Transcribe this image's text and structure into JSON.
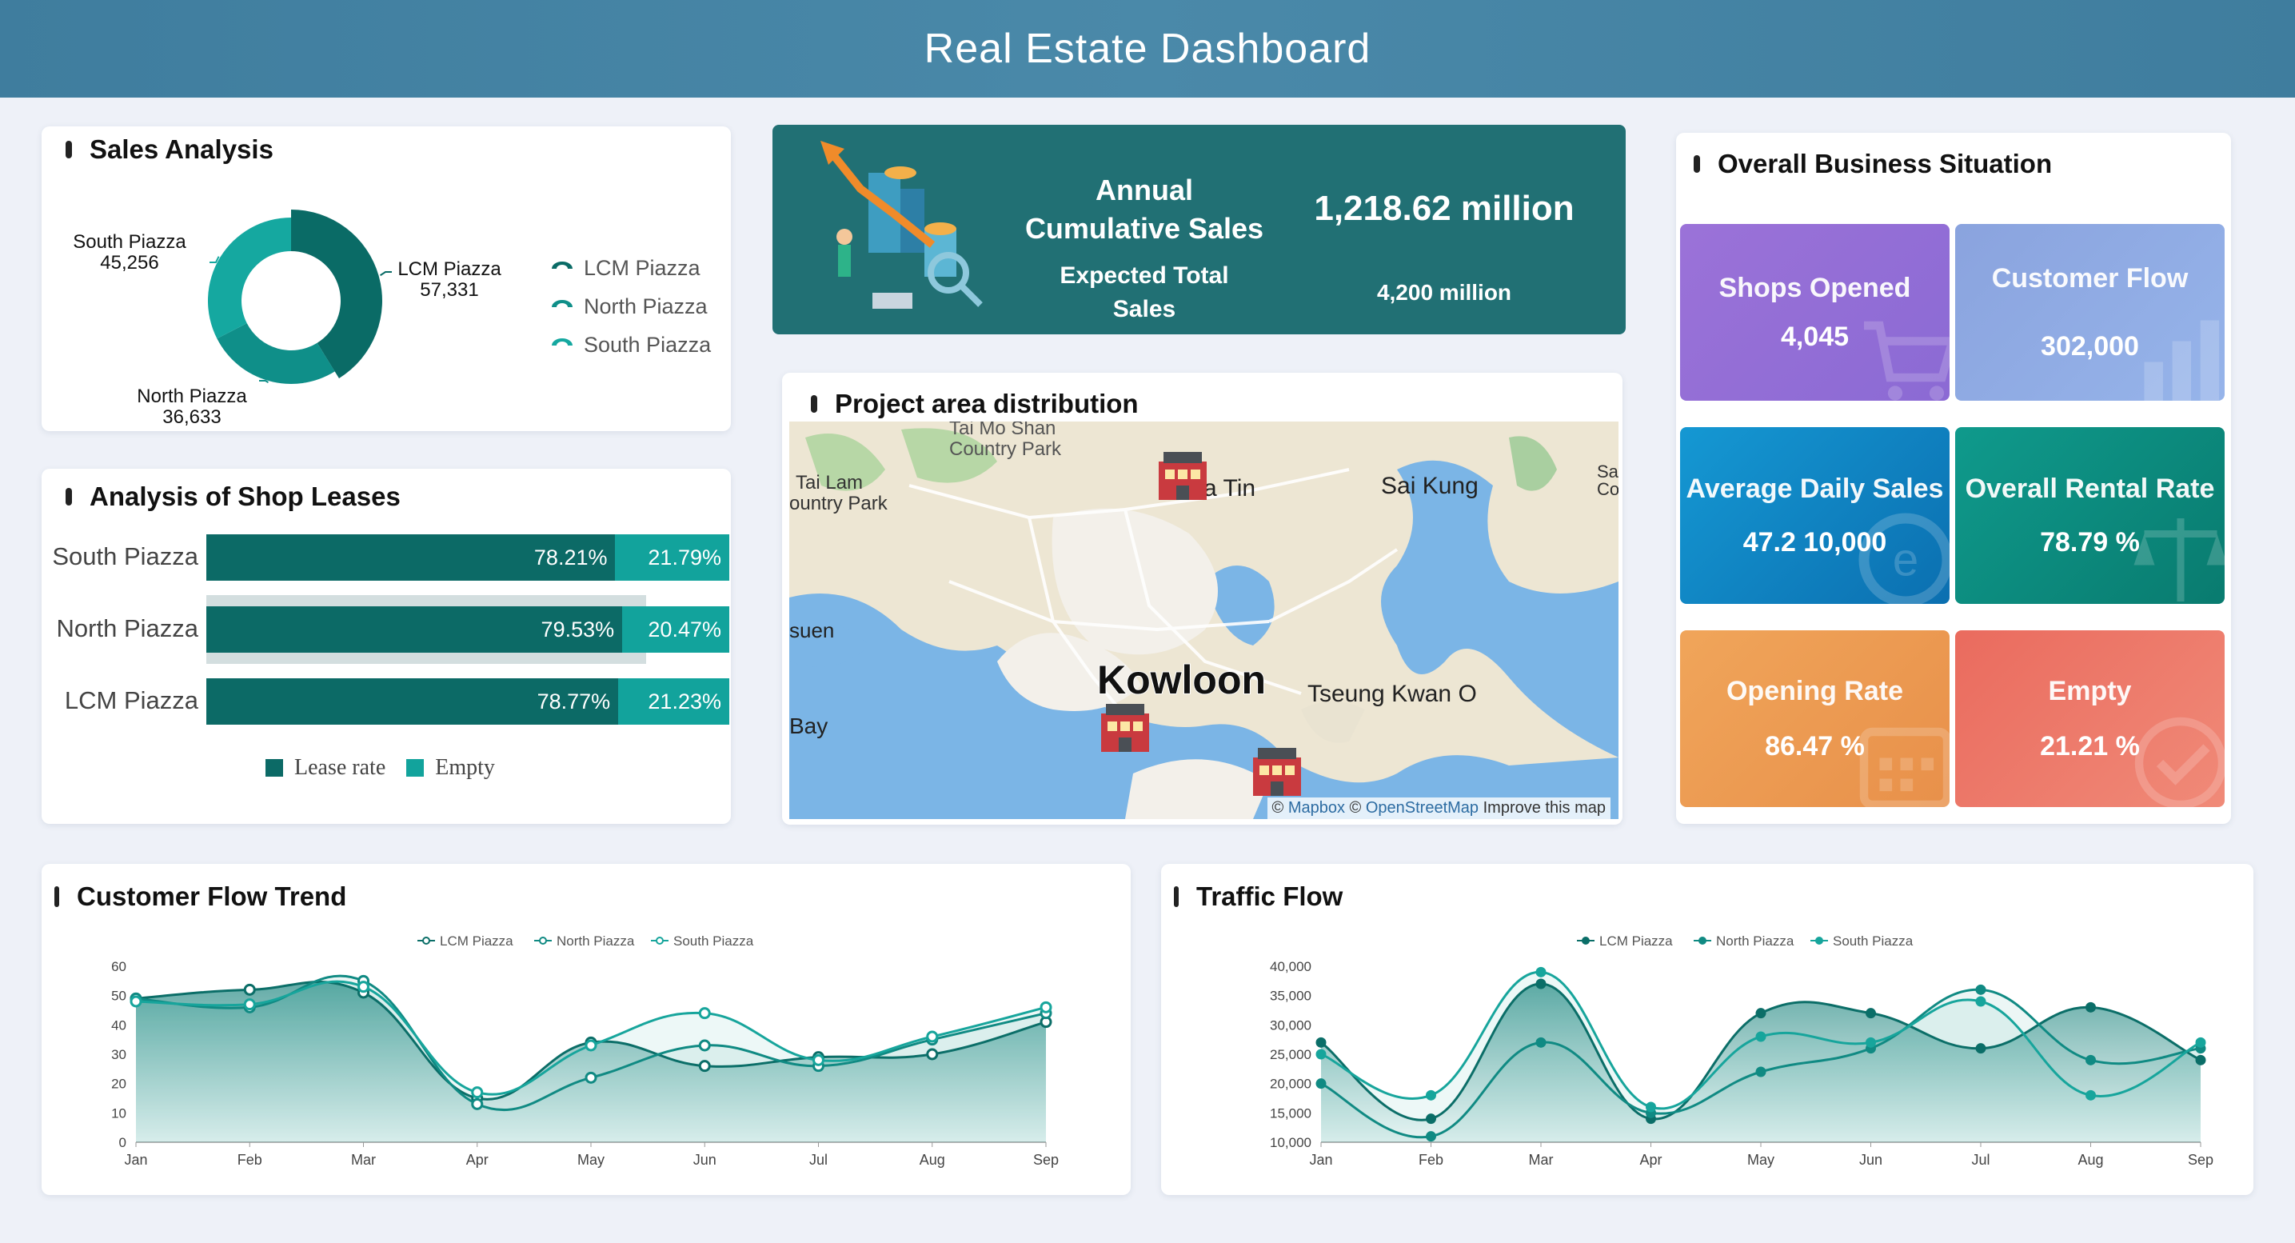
{
  "header": {
    "title": "Real Estate Dashboard"
  },
  "sales_analysis": {
    "title": "Sales Analysis",
    "legend": [
      "LCM Piazza",
      "North Piazza",
      "South Piazza"
    ],
    "slices": [
      {
        "name": "LCM Piazza",
        "value": 57331,
        "display": "57,331",
        "color": "#0a6b66"
      },
      {
        "name": "North Piazza",
        "value": 36633,
        "display": "36,633",
        "color": "#0f8f89"
      },
      {
        "name": "South Piazza",
        "value": 45256,
        "display": "45,256",
        "color": "#15a8a0"
      }
    ]
  },
  "annual": {
    "label_line1": "Annual",
    "label_line2": "Cumulative Sales",
    "value": "1,218.62 million",
    "expected_line1": "Expected Total",
    "expected_line2": "Sales",
    "expected_value": "4,200 million"
  },
  "overall": {
    "title": "Overall Business Situation",
    "cards": [
      {
        "label": "Shops Opened",
        "value": "4,045"
      },
      {
        "label": "Customer Flow",
        "value": "302,000"
      },
      {
        "label": "Average Daily Sales",
        "value": "47.2 10,000"
      },
      {
        "label": "Overall Rental Rate",
        "value": "78.79 %"
      },
      {
        "label": "Opening Rate",
        "value": "86.47 %"
      },
      {
        "label": "Empty",
        "value": "21.21 %"
      }
    ]
  },
  "leases": {
    "title": "Analysis of Shop Leases",
    "rows": [
      {
        "name": "South Piazza",
        "lease": 78.21,
        "lease_label": "78.21%",
        "empty": 21.79,
        "empty_label": "21.79%"
      },
      {
        "name": "North Piazza",
        "lease": 79.53,
        "lease_label": "79.53%",
        "empty": 20.47,
        "empty_label": "20.47%"
      },
      {
        "name": "LCM Piazza",
        "lease": 78.77,
        "lease_label": "78.77%",
        "empty": 21.23,
        "empty_label": "21.23%"
      }
    ],
    "legend": {
      "lease": "Lease rate",
      "empty": "Empty"
    }
  },
  "map": {
    "title": "Project area distribution",
    "places": [
      "Tai Mo Shan",
      "Country Park",
      "Tai Lam",
      "ountry Park",
      "a Tin",
      "Sai Kung",
      "suen",
      "Kowloon",
      "Tseung Kwan O",
      "Bay",
      "Sa",
      "Co"
    ],
    "attribution": {
      "copy1": "©",
      "mapbox": "Mapbox",
      "copy2": "©",
      "osm": "OpenStreetMap",
      "improve": "Improve this map"
    }
  },
  "chart_data": [
    {
      "type": "line",
      "title": "Customer Flow Trend",
      "categories": [
        "Jan",
        "Feb",
        "Mar",
        "Apr",
        "May",
        "Jun",
        "Jul",
        "Aug",
        "Sep"
      ],
      "ylim": [
        0,
        60
      ],
      "yticks": [
        "0",
        "10",
        "20",
        "30",
        "40",
        "50",
        "60"
      ],
      "series": [
        {
          "name": "LCM Piazza",
          "color": "#0b6e68",
          "values": [
            49,
            52,
            51,
            15,
            34,
            26,
            29,
            30,
            41
          ]
        },
        {
          "name": "North Piazza",
          "color": "#108a83",
          "values": [
            49,
            46,
            55,
            13,
            22,
            33,
            26,
            35,
            44
          ]
        },
        {
          "name": "South Piazza",
          "color": "#17a59c",
          "values": [
            48,
            47,
            53,
            17,
            33,
            44,
            28,
            36,
            46
          ]
        }
      ]
    },
    {
      "type": "line",
      "title": "Traffic Flow",
      "categories": [
        "Jan",
        "Feb",
        "Mar",
        "Apr",
        "May",
        "Jun",
        "Jul",
        "Aug",
        "Sep"
      ],
      "ylim": [
        10000,
        40000
      ],
      "yticks": [
        "10,000",
        "15,000",
        "20,000",
        "25,000",
        "30,000",
        "35,000",
        "40,000"
      ],
      "series": [
        {
          "name": "LCM Piazza",
          "color": "#0b6e68",
          "values": [
            27000,
            14000,
            37000,
            14000,
            32000,
            32000,
            26000,
            33000,
            24000
          ]
        },
        {
          "name": "North Piazza",
          "color": "#108a83",
          "values": [
            20000,
            11000,
            27000,
            15000,
            22000,
            26000,
            36000,
            24000,
            26000
          ]
        },
        {
          "name": "South Piazza",
          "color": "#17a59c",
          "values": [
            25000,
            18000,
            39000,
            16000,
            28000,
            27000,
            34000,
            18000,
            27000
          ]
        }
      ]
    }
  ]
}
